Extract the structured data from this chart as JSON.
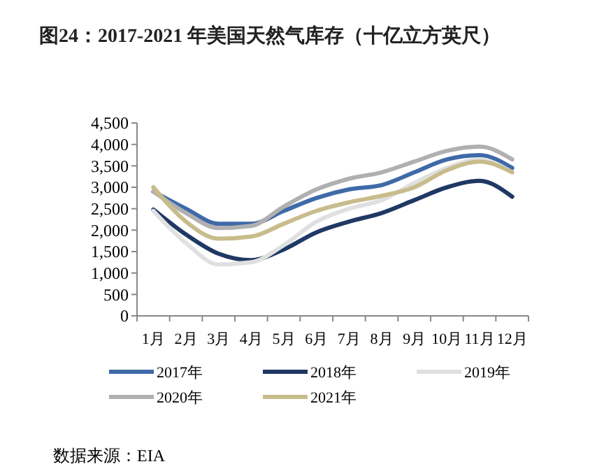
{
  "chart_data": {
    "type": "line",
    "title": "图24：2017-2021 年美国天然气库存（十亿立方英尺）",
    "categories": [
      "1月",
      "2月",
      "3月",
      "4月",
      "5月",
      "6月",
      "7月",
      "8月",
      "9月",
      "10月",
      "11月",
      "12月"
    ],
    "series": [
      {
        "name": "2017年",
        "color": "#3f6aa8",
        "values": [
          2900,
          2500,
          2150,
          2150,
          2450,
          2750,
          2950,
          3050,
          3350,
          3650,
          3750,
          3450
        ]
      },
      {
        "name": "2018年",
        "color": "#1f3864",
        "values": [
          2480,
          1900,
          1450,
          1300,
          1550,
          1950,
          2200,
          2400,
          2700,
          3000,
          3150,
          2780
        ]
      },
      {
        "name": "2019年",
        "color": "#e0e0e0",
        "values": [
          2450,
          1700,
          1200,
          1250,
          1650,
          2200,
          2500,
          2700,
          3100,
          3450,
          3650,
          3350
        ]
      },
      {
        "name": "2020年",
        "color": "#b0b0b0",
        "values": [
          2900,
          2400,
          2050,
          2100,
          2550,
          2950,
          3200,
          3350,
          3600,
          3850,
          3950,
          3650
        ]
      },
      {
        "name": "2021年",
        "color": "#c8bc8c",
        "values": [
          3000,
          2200,
          1800,
          1850,
          2150,
          2450,
          2650,
          2800,
          3000,
          3400,
          3600,
          3350
        ]
      }
    ],
    "ylim": [
      0,
      4500
    ],
    "yticks": [
      {
        "value": 0,
        "label": "0"
      },
      {
        "value": 500,
        "label": "500"
      },
      {
        "value": 1000,
        "label": "1,000"
      },
      {
        "value": 1500,
        "label": "1,500"
      },
      {
        "value": 2000,
        "label": "2,000"
      },
      {
        "value": 2500,
        "label": "2,500"
      },
      {
        "value": 3000,
        "label": "3,000"
      },
      {
        "value": 3500,
        "label": "3,500"
      },
      {
        "value": 4000,
        "label": "4,000"
      },
      {
        "value": 4500,
        "label": "4,500"
      }
    ],
    "grid": false,
    "legend": "bottom",
    "marker": "none",
    "line_style": "solid",
    "annotations": [
      "数据来源：EIA"
    ]
  }
}
